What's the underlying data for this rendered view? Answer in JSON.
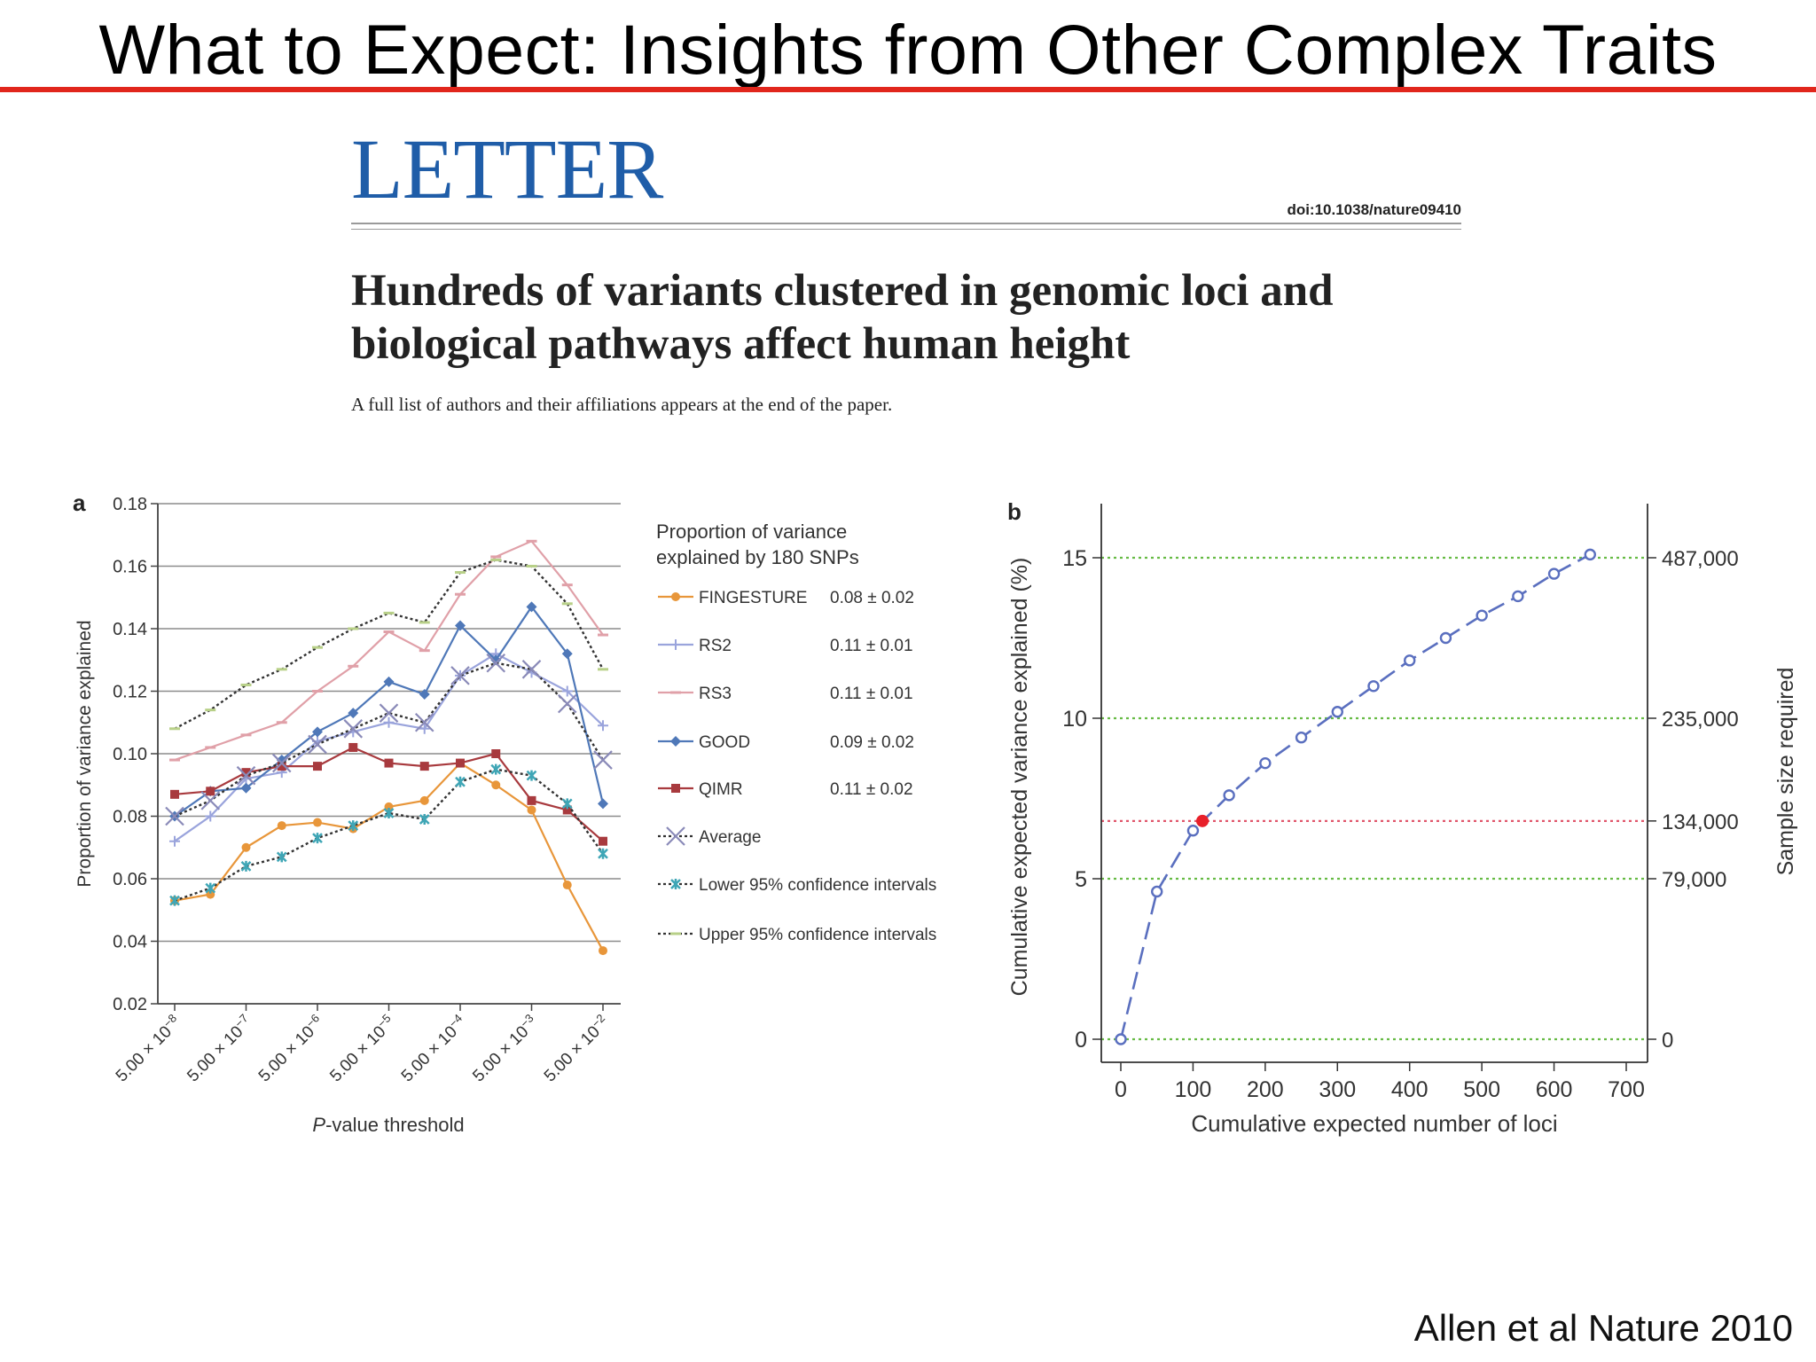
{
  "slide": {
    "title": "What to Expect: Insights from Other Complex Traits",
    "credit": "Allen et al Nature 2010",
    "accent_color": "#e1261c"
  },
  "paper": {
    "section": "LETTER",
    "doi": "doi:10.1038/nature09410",
    "title_line1": "Hundreds of variants clustered in genomic loci and",
    "title_line2": "biological pathways affect human height",
    "subtitle": "A full list of authors and their affiliations appears at the end of the paper."
  },
  "chart_data": [
    {
      "panel": "a",
      "type": "line",
      "xlabel_italic": "P",
      "xlabel_rest": "-value threshold",
      "ylabel": "Proportion of variance explained",
      "ylim": [
        0.02,
        0.18
      ],
      "yticks": [
        "0.18",
        "0.16",
        "0.14",
        "0.12",
        "0.10",
        "0.08",
        "0.06",
        "0.04",
        "0.02"
      ],
      "ytick_values": [
        0.18,
        0.16,
        0.14,
        0.12,
        0.1,
        0.08,
        0.06,
        0.04,
        0.02
      ],
      "x_tick_labels": [
        {
          "base": "5.00 × 10",
          "exp": "−8",
          "index": 0
        },
        {
          "base": "5.00 × 10",
          "exp": "−7",
          "index": 2
        },
        {
          "base": "5.00 × 10",
          "exp": "−6",
          "index": 4
        },
        {
          "base": "5.00 × 10",
          "exp": "−5",
          "index": 6
        },
        {
          "base": "5.00 × 10",
          "exp": "−4",
          "index": 8
        },
        {
          "base": "5.00 × 10",
          "exp": "−3",
          "index": 10
        },
        {
          "base": "5.00 × 10",
          "exp": "−2",
          "index": 12
        }
      ],
      "n_points": 13,
      "legend_title_1": "Proportion of variance",
      "legend_title_2": "explained by 180 SNPs",
      "legend": "right",
      "grid": true,
      "series": [
        {
          "name": "FINGESTURE",
          "stat": "0.08 ± 0.02",
          "color": "#e8963a",
          "marker": "circle",
          "dash": false,
          "values": [
            0.053,
            0.055,
            0.07,
            0.077,
            0.078,
            0.076,
            0.083,
            0.085,
            0.097,
            0.09,
            0.082,
            0.058,
            0.037
          ]
        },
        {
          "name": "RS2",
          "stat": "0.11 ± 0.01",
          "color": "#9aa4dc",
          "marker": "plus",
          "dash": false,
          "values": [
            0.072,
            0.08,
            0.092,
            0.094,
            0.104,
            0.107,
            0.11,
            0.108,
            0.125,
            0.132,
            0.126,
            0.12,
            0.109
          ]
        },
        {
          "name": "RS3",
          "stat": "0.11 ± 0.01",
          "color": "#e0a0a8",
          "marker": "dash",
          "dash": false,
          "values": [
            0.098,
            0.102,
            0.106,
            0.11,
            0.12,
            0.128,
            0.139,
            0.133,
            0.151,
            0.163,
            0.168,
            0.154,
            0.138
          ]
        },
        {
          "name": "GOOD",
          "stat": "0.09 ± 0.02",
          "color": "#4f78b8",
          "marker": "diamond",
          "dash": false,
          "values": [
            0.08,
            0.088,
            0.089,
            0.098,
            0.107,
            0.113,
            0.123,
            0.119,
            0.141,
            0.13,
            0.147,
            0.132,
            0.084
          ]
        },
        {
          "name": "QIMR",
          "stat": "0.11 ± 0.02",
          "color": "#a83a3e",
          "marker": "square",
          "dash": false,
          "values": [
            0.087,
            0.088,
            0.094,
            0.096,
            0.096,
            0.102,
            0.097,
            0.096,
            0.097,
            0.1,
            0.085,
            0.082,
            0.072
          ]
        },
        {
          "name": "Average",
          "stat": "",
          "color": "#8a8ab8",
          "marker": "x",
          "dash": true,
          "line_color": "#333333",
          "values": [
            0.08,
            0.085,
            0.093,
            0.097,
            0.103,
            0.108,
            0.113,
            0.11,
            0.125,
            0.129,
            0.127,
            0.116,
            0.098
          ]
        },
        {
          "name": "Lower 95% confidence intervals",
          "stat": "",
          "color": "#3fa6b6",
          "marker": "star",
          "dash": true,
          "line_color": "#333333",
          "values": [
            0.053,
            0.057,
            0.064,
            0.067,
            0.073,
            0.077,
            0.081,
            0.079,
            0.091,
            0.095,
            0.093,
            0.084,
            0.068
          ]
        },
        {
          "name": "Upper 95% confidence intervals",
          "stat": "",
          "color": "#b8d088",
          "marker": "dash",
          "dash": true,
          "line_color": "#333333",
          "values": [
            0.108,
            0.114,
            0.122,
            0.127,
            0.134,
            0.14,
            0.145,
            0.142,
            0.158,
            0.162,
            0.16,
            0.148,
            0.127
          ]
        }
      ]
    },
    {
      "panel": "b",
      "type": "line",
      "xlabel": "Cumulative expected number of loci",
      "ylabel": "Cumulative expected variance explained (%)",
      "y2label": "Sample size required",
      "xlim": [
        -20,
        720
      ],
      "ylim": [
        -0.5,
        16.5
      ],
      "xticks": [
        0,
        100,
        200,
        300,
        400,
        500,
        600,
        700
      ],
      "yticks": [
        0,
        5,
        10,
        15
      ],
      "line_color": "#5a6fbf",
      "highlight_color": "#e8202a",
      "x": [
        0,
        50,
        100,
        150,
        200,
        250,
        300,
        350,
        400,
        450,
        500,
        550,
        600,
        650
      ],
      "y": [
        0,
        4.6,
        6.5,
        7.6,
        8.6,
        9.4,
        10.2,
        11.0,
        11.8,
        12.5,
        13.2,
        13.8,
        14.5,
        15.1
      ],
      "highlight_point": {
        "x": 113,
        "y": 6.8
      },
      "reference_lines": [
        {
          "y": 15,
          "color": "#66bb44",
          "label": "487,000"
        },
        {
          "y": 10,
          "color": "#66bb44",
          "label": "235,000"
        },
        {
          "y": 6.8,
          "color": "#e0556a",
          "label": "134,000"
        },
        {
          "y": 5,
          "color": "#66bb44",
          "label": "79,000"
        },
        {
          "y": 0,
          "color": "#66bb44",
          "label": "0"
        }
      ]
    }
  ]
}
